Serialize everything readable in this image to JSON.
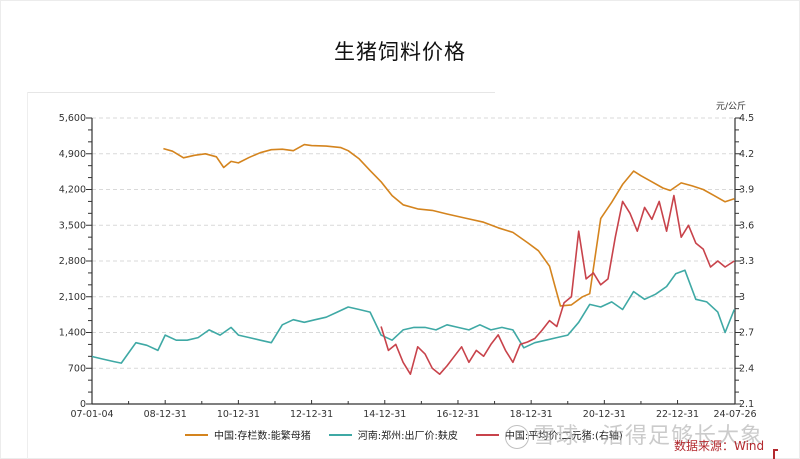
{
  "title": "生猪饲料价格",
  "right_axis_unit": "元/公斤",
  "source_label": "数据来源：Wind",
  "watermark": "雪球：活得足够长大象",
  "legend": [
    {
      "label": "中国:存栏数:能繁母猪",
      "color": "#d4841e"
    },
    {
      "label": "河南:郑州:出厂价:麸皮",
      "color": "#3fa9a5"
    },
    {
      "label": "中国:平均价:二元猪:(右轴)",
      "color": "#c8434b"
    }
  ],
  "chart_data": {
    "type": "line",
    "title": "生猪饲料价格",
    "xlabel": "",
    "ylabel_left": "",
    "ylabel_right": "元/公斤",
    "x_ticks": [
      "07-01-04",
      "08-12-31",
      "10-12-31",
      "12-12-31",
      "14-12-31",
      "16-12-31",
      "18-12-31",
      "20-12-31",
      "22-12-31",
      "24-07-26"
    ],
    "y_left_ticks": [
      "0",
      "700",
      "1,400",
      "2,100",
      "2,800",
      "3,500",
      "4,200",
      "4,900",
      "5,600"
    ],
    "y_left_range": [
      0,
      5600
    ],
    "y_right_ticks": [
      "2.1",
      "2.4",
      "2.7",
      "3",
      "3.3",
      "3.6",
      "3.9",
      "4.2",
      "4.5"
    ],
    "y_right_range": [
      2.1,
      4.5
    ],
    "grid": "horizontal dashed",
    "legend_position": "bottom",
    "series": [
      {
        "name": "中国:存栏数:能繁母猪",
        "axis": "left",
        "color": "#d4841e",
        "x": [
          2008.95,
          2009.2,
          2009.5,
          2009.8,
          2010.1,
          2010.4,
          2010.6,
          2010.8,
          2011.0,
          2011.3,
          2011.6,
          2011.9,
          2012.2,
          2012.5,
          2012.8,
          2013.0,
          2013.4,
          2013.8,
          2014.0,
          2014.3,
          2014.6,
          2014.9,
          2015.2,
          2015.5,
          2015.9,
          2016.3,
          2016.7,
          2017.2,
          2017.7,
          2018.1,
          2018.5,
          2018.9,
          2019.2,
          2019.5,
          2019.65,
          2019.8,
          2020.1,
          2020.4,
          2020.6,
          2020.9,
          2021.2,
          2021.5,
          2021.8,
          2022.0,
          2022.3,
          2022.6,
          2022.8,
          2023.1,
          2023.4,
          2023.7,
          2024.0,
          2024.3,
          2024.55
        ],
        "values": [
          5000,
          4950,
          4820,
          4870,
          4900,
          4840,
          4630,
          4750,
          4720,
          4830,
          4920,
          4980,
          4990,
          4960,
          5080,
          5060,
          5050,
          5020,
          4960,
          4800,
          4570,
          4350,
          4080,
          3900,
          3820,
          3790,
          3720,
          3640,
          3560,
          3450,
          3360,
          3160,
          3000,
          2700,
          2310,
          1920,
          1940,
          2100,
          2160,
          3630,
          3950,
          4300,
          4560,
          4470,
          4350,
          4230,
          4180,
          4330,
          4270,
          4200,
          4080,
          3960,
          4020
        ]
      },
      {
        "name": "河南:郑州:出厂价:麸皮",
        "axis": "left",
        "color": "#3fa9a5",
        "x": [
          2007.0,
          2007.3,
          2007.6,
          2007.8,
          2008.0,
          2008.2,
          2008.5,
          2008.8,
          2009.0,
          2009.3,
          2009.6,
          2009.9,
          2010.2,
          2010.5,
          2010.8,
          2011.0,
          2011.3,
          2011.6,
          2011.9,
          2012.2,
          2012.5,
          2012.8,
          2013.1,
          2013.4,
          2013.7,
          2014.0,
          2014.3,
          2014.6,
          2014.9,
          2015.2,
          2015.5,
          2015.8,
          2016.1,
          2016.4,
          2016.7,
          2017.0,
          2017.3,
          2017.6,
          2017.9,
          2018.2,
          2018.5,
          2018.8,
          2019.1,
          2019.4,
          2019.7,
          2020.0,
          2020.3,
          2020.6,
          2020.9,
          2021.2,
          2021.5,
          2021.8,
          2022.1,
          2022.4,
          2022.7,
          2022.95,
          2023.2,
          2023.5,
          2023.8,
          2024.1,
          2024.3,
          2024.55
        ],
        "values": [
          930,
          880,
          830,
          800,
          1000,
          1200,
          1150,
          1050,
          1350,
          1250,
          1250,
          1300,
          1450,
          1350,
          1500,
          1350,
          1300,
          1250,
          1200,
          1550,
          1650,
          1600,
          1650,
          1700,
          1800,
          1900,
          1850,
          1800,
          1350,
          1250,
          1450,
          1500,
          1500,
          1450,
          1550,
          1500,
          1450,
          1550,
          1450,
          1500,
          1450,
          1100,
          1200,
          1250,
          1300,
          1350,
          1600,
          1950,
          1900,
          2000,
          1850,
          2200,
          2050,
          2150,
          2300,
          2550,
          2620,
          2050,
          2000,
          1800,
          1400,
          1850
        ]
      },
      {
        "name": "中国:平均价:二元猪:(右轴)",
        "axis": "right",
        "color": "#c8434b",
        "x": [
          2014.9,
          2015.1,
          2015.3,
          2015.5,
          2015.7,
          2015.9,
          2016.1,
          2016.3,
          2016.5,
          2016.7,
          2016.9,
          2017.1,
          2017.3,
          2017.5,
          2017.7,
          2017.9,
          2018.1,
          2018.3,
          2018.5,
          2018.7,
          2018.9,
          2019.1,
          2019.3,
          2019.5,
          2019.7,
          2019.9,
          2020.1,
          2020.3,
          2020.5,
          2020.7,
          2020.9,
          2021.1,
          2021.3,
          2021.5,
          2021.7,
          2021.9,
          2022.1,
          2022.3,
          2022.5,
          2022.7,
          2022.9,
          2023.1,
          2023.3,
          2023.5,
          2023.7,
          2023.9,
          2024.1,
          2024.3,
          2024.55
        ],
        "values": [
          2.75,
          2.55,
          2.6,
          2.45,
          2.35,
          2.58,
          2.52,
          2.4,
          2.35,
          2.42,
          2.5,
          2.58,
          2.45,
          2.55,
          2.5,
          2.6,
          2.68,
          2.55,
          2.45,
          2.6,
          2.62,
          2.65,
          2.72,
          2.8,
          2.75,
          2.95,
          3.0,
          3.55,
          3.15,
          3.2,
          3.1,
          3.15,
          3.5,
          3.8,
          3.7,
          3.55,
          3.75,
          3.65,
          3.8,
          3.55,
          3.85,
          3.5,
          3.6,
          3.45,
          3.4,
          3.25,
          3.3,
          3.25,
          3.3
        ]
      }
    ]
  }
}
